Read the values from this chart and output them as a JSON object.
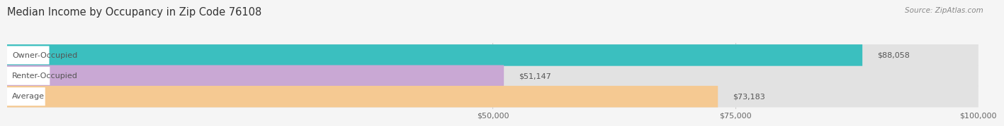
{
  "title": "Median Income by Occupancy in Zip Code 76108",
  "source": "Source: ZipAtlas.com",
  "categories": [
    "Owner-Occupied",
    "Renter-Occupied",
    "Average"
  ],
  "values": [
    88058,
    51147,
    73183
  ],
  "labels": [
    "$88,058",
    "$51,147",
    "$73,183"
  ],
  "bar_colors": [
    "#3bbfbf",
    "#c9a8d4",
    "#f5c992"
  ],
  "bar_bg_color": "#e8e8e8",
  "xmax": 100000,
  "xticks": [
    50000,
    75000,
    100000
  ],
  "xtick_labels": [
    "$50,000",
    "$75,000",
    "$100,000"
  ],
  "title_fontsize": 10.5,
  "source_fontsize": 7.5,
  "label_fontsize": 8,
  "tick_fontsize": 8,
  "background_color": "#f5f5f5",
  "bar_height": 0.52
}
